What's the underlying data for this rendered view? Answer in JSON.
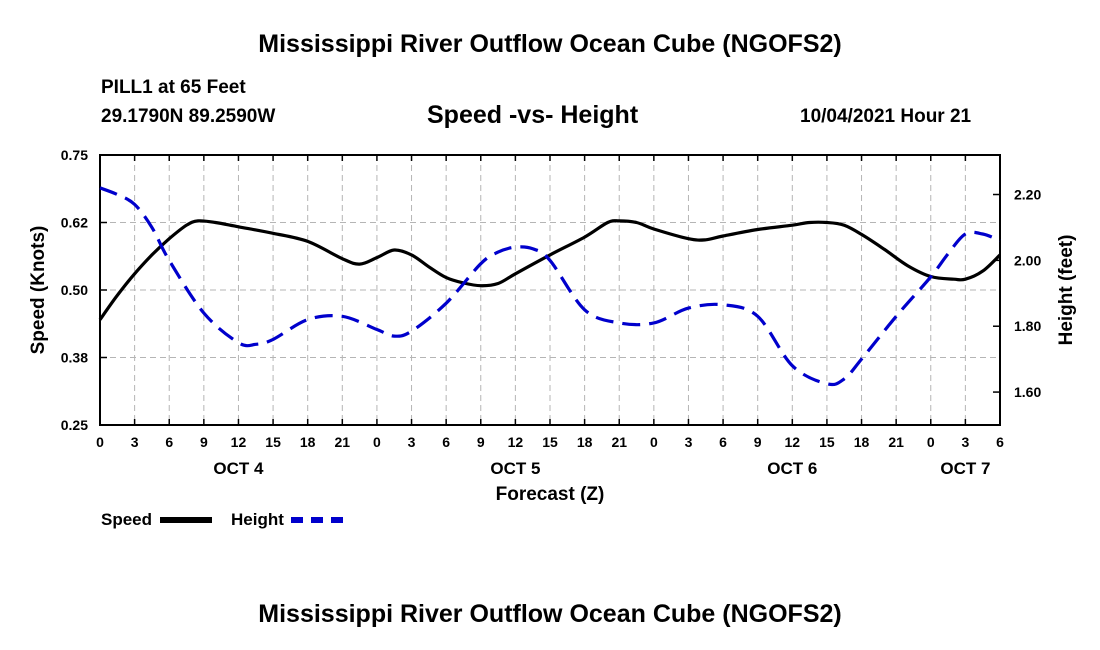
{
  "header": {
    "title_top": "Mississippi River Outflow Ocean Cube (NGOFS2)",
    "title_bottom": "Mississippi River Outflow Ocean Cube (NGOFS2)",
    "station": "PILL1 at 65 Feet",
    "coords": "29.1790N  89.2590W",
    "subtitle": "Speed -vs- Height",
    "datetime": "10/04/2021 Hour 21"
  },
  "chart_data": {
    "type": "line",
    "title": "Speed -vs- Height",
    "xlabel": "Forecast (Z)",
    "ylabel_left": "Speed (Knots)",
    "ylabel_right": "Height (feet)",
    "x_range_hours": [
      0,
      78
    ],
    "ylim_left": [
      0.25,
      0.75
    ],
    "ylim_right": [
      1.5,
      2.32
    ],
    "left_ticks": [
      {
        "value": 0.25,
        "label": "0.25"
      },
      {
        "value": 0.375,
        "label": "0.38"
      },
      {
        "value": 0.5,
        "label": "0.50"
      },
      {
        "value": 0.625,
        "label": "0.62"
      },
      {
        "value": 0.75,
        "label": "0.75"
      }
    ],
    "right_ticks": [
      {
        "value": 1.6,
        "label": "1.60"
      },
      {
        "value": 1.8,
        "label": "1.80"
      },
      {
        "value": 2.0,
        "label": "2.00"
      },
      {
        "value": 2.2,
        "label": "2.20"
      }
    ],
    "x_ticks": [
      {
        "h": 0,
        "label": "0"
      },
      {
        "h": 3,
        "label": "3"
      },
      {
        "h": 6,
        "label": "6"
      },
      {
        "h": 9,
        "label": "9"
      },
      {
        "h": 12,
        "label": "12"
      },
      {
        "h": 15,
        "label": "15"
      },
      {
        "h": 18,
        "label": "18"
      },
      {
        "h": 21,
        "label": "21"
      },
      {
        "h": 24,
        "label": "0"
      },
      {
        "h": 27,
        "label": "3"
      },
      {
        "h": 30,
        "label": "6"
      },
      {
        "h": 33,
        "label": "9"
      },
      {
        "h": 36,
        "label": "12"
      },
      {
        "h": 39,
        "label": "15"
      },
      {
        "h": 42,
        "label": "18"
      },
      {
        "h": 45,
        "label": "21"
      },
      {
        "h": 48,
        "label": "0"
      },
      {
        "h": 51,
        "label": "3"
      },
      {
        "h": 54,
        "label": "6"
      },
      {
        "h": 57,
        "label": "9"
      },
      {
        "h": 60,
        "label": "12"
      },
      {
        "h": 63,
        "label": "15"
      },
      {
        "h": 66,
        "label": "18"
      },
      {
        "h": 69,
        "label": "21"
      },
      {
        "h": 72,
        "label": "0"
      },
      {
        "h": 75,
        "label": "3"
      },
      {
        "h": 78,
        "label": "6"
      }
    ],
    "day_labels": [
      {
        "h": 12,
        "label": "OCT 4"
      },
      {
        "h": 36,
        "label": "OCT 5"
      },
      {
        "h": 60,
        "label": "OCT 6"
      },
      {
        "h": 75,
        "label": "OCT 7"
      }
    ],
    "series": [
      {
        "name": "Speed",
        "axis": "left",
        "color": "#000000",
        "style": "solid",
        "hours": [
          0,
          1.5,
          3,
          4.5,
          6,
          7.5,
          8.5,
          10,
          12,
          15,
          18,
          21,
          22.5,
          24,
          25.5,
          27,
          28.5,
          30,
          31.5,
          33,
          34.5,
          36,
          39,
          42,
          44,
          45,
          46.5,
          48,
          51,
          52.5,
          54,
          57,
          60,
          61.5,
          63,
          64.5,
          66,
          68,
          70,
          72,
          74,
          75,
          76.5,
          78
        ],
        "values": [
          0.445,
          0.49,
          0.53,
          0.565,
          0.595,
          0.62,
          0.628,
          0.625,
          0.617,
          0.605,
          0.59,
          0.558,
          0.548,
          0.56,
          0.574,
          0.565,
          0.543,
          0.523,
          0.513,
          0.508,
          0.512,
          0.53,
          0.565,
          0.598,
          0.625,
          0.628,
          0.625,
          0.613,
          0.595,
          0.593,
          0.6,
          0.612,
          0.62,
          0.625,
          0.625,
          0.62,
          0.603,
          0.575,
          0.545,
          0.525,
          0.52,
          0.52,
          0.535,
          0.565
        ]
      },
      {
        "name": "Height",
        "axis": "right",
        "color": "#0000cc",
        "style": "dashed",
        "hours": [
          0,
          1.5,
          3,
          4.5,
          6,
          9,
          12,
          13.5,
          15,
          18,
          21,
          24,
          25.5,
          27,
          30,
          33,
          34.5,
          36,
          37.5,
          39,
          42,
          45,
          48,
          51,
          54,
          57,
          60,
          63,
          64.5,
          66,
          69,
          72,
          73.5,
          75,
          76.5,
          78
        ],
        "values": [
          2.22,
          2.2,
          2.17,
          2.1,
          2.0,
          1.84,
          1.75,
          1.745,
          1.76,
          1.82,
          1.83,
          1.79,
          1.77,
          1.785,
          1.87,
          1.99,
          2.025,
          2.04,
          2.035,
          2.0,
          1.85,
          1.81,
          1.81,
          1.855,
          1.865,
          1.83,
          1.68,
          1.625,
          1.64,
          1.7,
          1.83,
          1.95,
          2.02,
          2.08,
          2.08,
          2.06
        ]
      }
    ],
    "legend": [
      {
        "name": "Speed",
        "color": "#000000",
        "style": "solid"
      },
      {
        "name": "Height",
        "color": "#0000cc",
        "style": "dashed"
      }
    ]
  }
}
